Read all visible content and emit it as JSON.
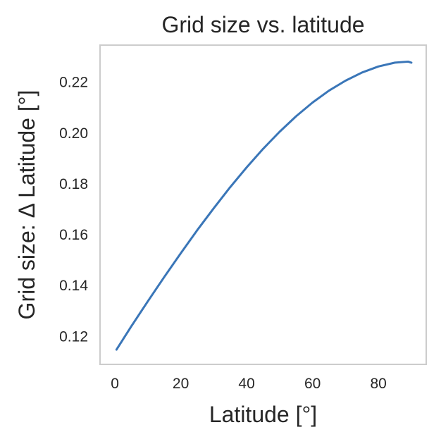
{
  "chart_data": {
    "type": "line",
    "title": "Grid size vs. latitude",
    "xlabel": "Latitude [°]",
    "ylabel": "Grid size: Δ Latitude [°]",
    "xlim": [
      -4.5,
      94.5
    ],
    "ylim": [
      0.109,
      0.2346
    ],
    "xticks": [
      0,
      20,
      40,
      60,
      80
    ],
    "xtick_labels": [
      "0",
      "20",
      "40",
      "60",
      "80"
    ],
    "yticks": [
      0.12,
      0.14,
      0.16,
      0.18,
      0.2,
      0.22
    ],
    "ytick_labels": [
      "0.12",
      "0.14",
      "0.16",
      "0.18",
      "0.20",
      "0.22"
    ],
    "grid": false,
    "legend": "none",
    "colors": {
      "line": "#3a76b8",
      "frame": "#cccccc",
      "text": "#262626"
    },
    "series": [
      {
        "x": [
          0.5,
          5,
          10,
          15,
          20,
          25,
          30,
          35,
          40,
          45,
          50,
          55,
          60,
          65,
          70,
          75,
          80,
          85,
          89,
          90
        ],
        "y": [
          0.1148,
          0.124,
          0.1338,
          0.1434,
          0.1527,
          0.1618,
          0.1704,
          0.1787,
          0.1865,
          0.1938,
          0.2005,
          0.2066,
          0.212,
          0.2167,
          0.2206,
          0.2238,
          0.2262,
          0.2277,
          0.2281,
          0.2277
        ]
      }
    ]
  }
}
